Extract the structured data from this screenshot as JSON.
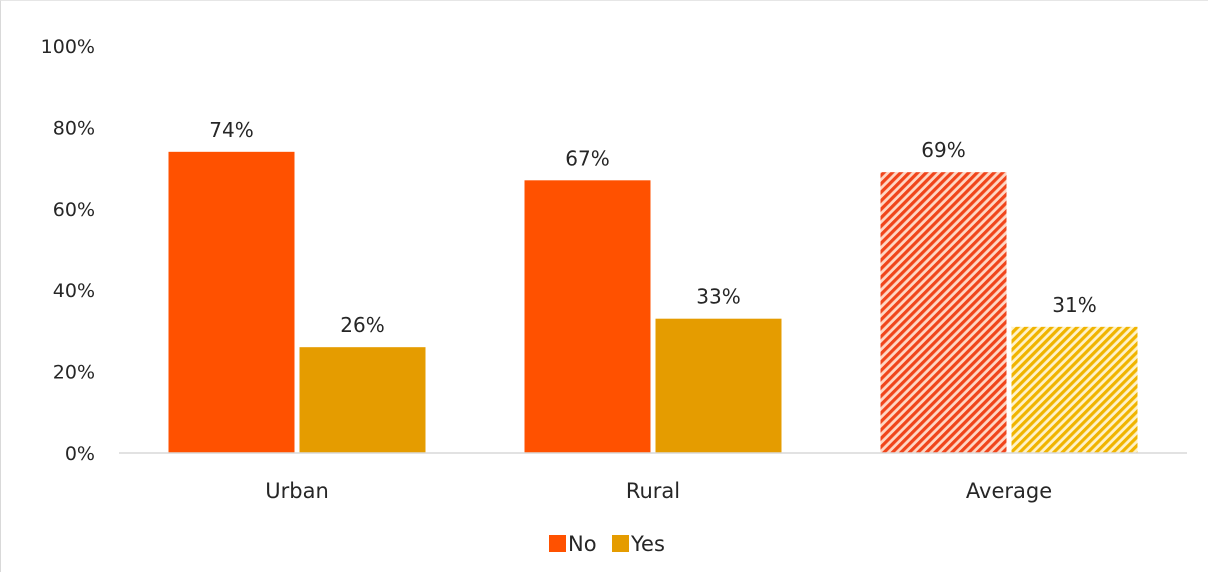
{
  "chart_data": {
    "type": "bar",
    "categories": [
      "Urban",
      "Rural",
      "Average"
    ],
    "series": [
      {
        "name": "No",
        "values": [
          74,
          67,
          69
        ],
        "data_labels": [
          "74%",
          "67%",
          "69%"
        ],
        "color": "#ff5100"
      },
      {
        "name": "Yes",
        "values": [
          26,
          33,
          31
        ],
        "data_labels": [
          "26%",
          "33%",
          "31%"
        ],
        "color": "#e59c00"
      }
    ],
    "hatched_category": "Average",
    "title": "",
    "xlabel": "",
    "ylabel": "",
    "ylim": [
      0,
      100
    ],
    "yticks": [
      "0%",
      "20%",
      "40%",
      "60%",
      "80%",
      "100%"
    ],
    "grid": false,
    "legend_position": "bottom"
  }
}
